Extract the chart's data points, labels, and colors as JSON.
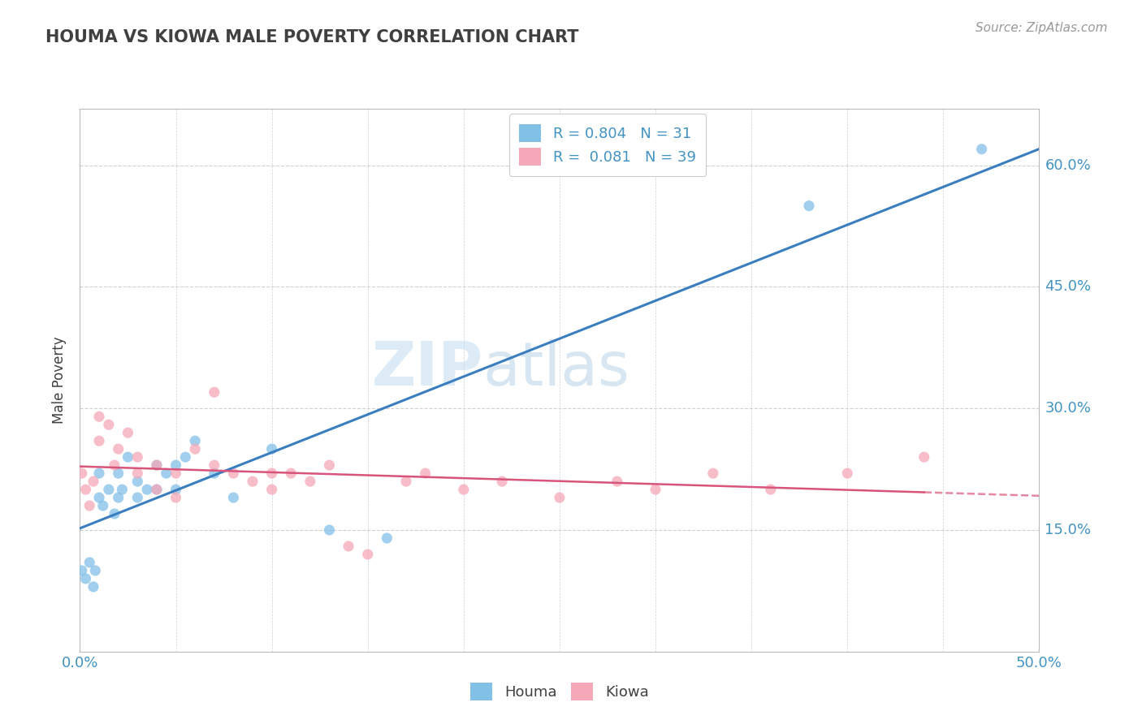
{
  "title": "HOUMA VS KIOWA MALE POVERTY CORRELATION CHART",
  "source_text": "Source: ZipAtlas.com",
  "ylabel": "Male Poverty",
  "xlim": [
    0.0,
    0.5
  ],
  "ylim": [
    0.0,
    0.67
  ],
  "ytick_right_labels": [
    "15.0%",
    "30.0%",
    "45.0%",
    "60.0%"
  ],
  "ytick_right_values": [
    0.15,
    0.3,
    0.45,
    0.6
  ],
  "watermark_zip": "ZIP",
  "watermark_atlas": "atlas",
  "houma_color": "#82c0e8",
  "kiowa_color": "#f5a8b8",
  "houma_line_color": "#3b7ec0",
  "kiowa_line_color": "#d9547a",
  "houma_R": 0.804,
  "houma_N": 31,
  "kiowa_R": 0.081,
  "kiowa_N": 39,
  "houma_scatter_x": [
    0.001,
    0.003,
    0.005,
    0.007,
    0.008,
    0.01,
    0.01,
    0.012,
    0.015,
    0.018,
    0.02,
    0.02,
    0.022,
    0.025,
    0.03,
    0.03,
    0.035,
    0.04,
    0.04,
    0.045,
    0.05,
    0.05,
    0.055,
    0.06,
    0.07,
    0.08,
    0.1,
    0.13,
    0.16,
    0.38,
    0.47
  ],
  "houma_scatter_y": [
    0.1,
    0.09,
    0.11,
    0.08,
    0.1,
    0.19,
    0.22,
    0.18,
    0.2,
    0.17,
    0.19,
    0.22,
    0.2,
    0.24,
    0.19,
    0.21,
    0.2,
    0.2,
    0.23,
    0.22,
    0.2,
    0.23,
    0.24,
    0.26,
    0.22,
    0.19,
    0.25,
    0.15,
    0.14,
    0.55,
    0.62
  ],
  "kiowa_scatter_x": [
    0.001,
    0.003,
    0.005,
    0.007,
    0.01,
    0.01,
    0.015,
    0.018,
    0.02,
    0.025,
    0.03,
    0.03,
    0.04,
    0.04,
    0.05,
    0.05,
    0.06,
    0.07,
    0.07,
    0.08,
    0.09,
    0.1,
    0.1,
    0.11,
    0.12,
    0.13,
    0.14,
    0.15,
    0.17,
    0.18,
    0.2,
    0.22,
    0.25,
    0.28,
    0.3,
    0.33,
    0.36,
    0.4,
    0.44
  ],
  "kiowa_scatter_y": [
    0.22,
    0.2,
    0.18,
    0.21,
    0.26,
    0.29,
    0.28,
    0.23,
    0.25,
    0.27,
    0.22,
    0.24,
    0.2,
    0.23,
    0.19,
    0.22,
    0.25,
    0.23,
    0.32,
    0.22,
    0.21,
    0.22,
    0.2,
    0.22,
    0.21,
    0.23,
    0.13,
    0.12,
    0.21,
    0.22,
    0.2,
    0.21,
    0.19,
    0.21,
    0.2,
    0.22,
    0.2,
    0.22,
    0.24
  ],
  "background_color": "#ffffff",
  "grid_color": "#d0d0d0",
  "title_color": "#404040",
  "label_color": "#404040",
  "tick_color": "#4393c3"
}
